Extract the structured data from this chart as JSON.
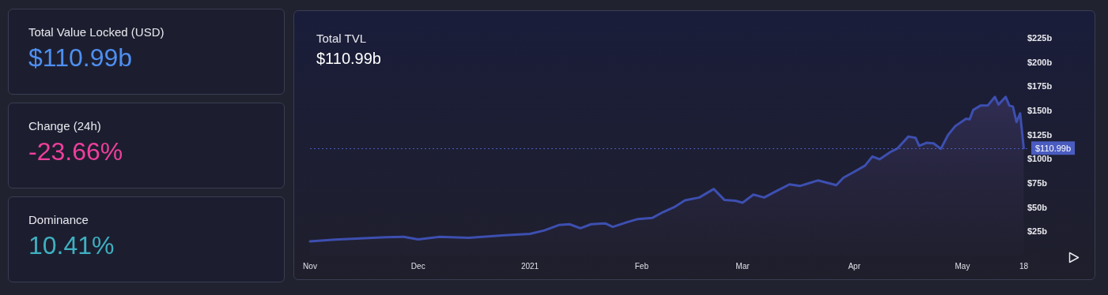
{
  "chart_data": [
    {
      "type": "other",
      "annotations": [
        "Total Value Locked (USD)",
        "$110.99b",
        "Change (24h)",
        "-23.66%",
        "Dominance",
        "10.41%"
      ]
    },
    {
      "type": "area",
      "title": "Total TVL",
      "subtitle": "$110.99b",
      "color": "#3d4fb0",
      "marker": "none",
      "x": [
        "2020-11-01",
        "2020-11-08",
        "2020-11-15",
        "2020-11-22",
        "2020-11-27",
        "2020-12-01",
        "2020-12-07",
        "2020-12-15",
        "2020-12-25",
        "2021-01-01",
        "2021-01-05",
        "2021-01-09",
        "2021-01-12",
        "2021-01-15",
        "2021-01-18",
        "2021-01-22",
        "2021-01-24",
        "2021-01-28",
        "2021-01-31",
        "2021-02-04",
        "2021-02-07",
        "2021-02-10",
        "2021-02-13",
        "2021-02-17",
        "2021-02-21",
        "2021-02-24",
        "2021-02-27",
        "2021-03-01",
        "2021-03-04",
        "2021-03-07",
        "2021-03-10",
        "2021-03-14",
        "2021-03-17",
        "2021-03-22",
        "2021-03-27",
        "2021-03-29",
        "2021-04-01",
        "2021-04-04",
        "2021-04-06",
        "2021-04-08",
        "2021-04-11",
        "2021-04-13",
        "2021-04-16",
        "2021-04-18",
        "2021-04-19",
        "2021-04-21",
        "2021-04-23",
        "2021-04-25",
        "2021-04-27",
        "2021-04-29",
        "2021-05-02",
        "2021-05-03",
        "2021-05-04",
        "2021-05-06",
        "2021-05-08",
        "2021-05-10",
        "2021-05-11",
        "2021-05-13",
        "2021-05-14",
        "2021-05-15",
        "2021-05-16",
        "2021-05-17",
        "2021-05-18"
      ],
      "values": [
        14.6,
        16.5,
        17.8,
        19,
        19.4,
        16.7,
        19.4,
        18.4,
        21,
        22.4,
        26,
        31.5,
        32.4,
        28.3,
        32.4,
        33.2,
        29.7,
        34.5,
        37.8,
        39,
        45,
        50,
        57,
        60,
        68.8,
        57.4,
        56.6,
        54.6,
        63,
        60,
        65.9,
        73.6,
        72,
        77.7,
        72.8,
        80.5,
        86.6,
        93,
        102.4,
        99.5,
        107,
        110.8,
        123,
        121.6,
        113.4,
        116.5,
        116,
        110.3,
        124.6,
        133.8,
        141.4,
        140.8,
        150.5,
        155,
        155,
        164,
        156,
        164,
        155,
        154,
        138,
        147,
        110.99
      ],
      "xlim": [
        "2020-11-01",
        "2021-05-19"
      ],
      "xticks": [
        {
          "value": "2020-11-01",
          "label": "Nov"
        },
        {
          "value": "2020-12-01",
          "label": "Dec"
        },
        {
          "value": "2021-01-01",
          "label": "2021"
        },
        {
          "value": "2021-02-01",
          "label": "Feb"
        },
        {
          "value": "2021-03-01",
          "label": "Mar"
        },
        {
          "value": "2021-04-01",
          "label": "Apr"
        },
        {
          "value": "2021-05-01",
          "label": "May"
        },
        {
          "value": "2021-05-18",
          "label": "18"
        }
      ],
      "ylim": [
        0,
        225
      ],
      "yticks": [
        {
          "value": 25,
          "label": "$25b"
        },
        {
          "value": 50,
          "label": "$50b"
        },
        {
          "value": 75,
          "label": "$75b"
        },
        {
          "value": 100,
          "label": "$100b"
        },
        {
          "value": 125,
          "label": "$125b"
        },
        {
          "value": 150,
          "label": "$150b"
        },
        {
          "value": 175,
          "label": "$175b"
        },
        {
          "value": 200,
          "label": "$200b"
        },
        {
          "value": 225,
          "label": "$225b"
        }
      ],
      "ref_lines": [
        {
          "axis": "y",
          "value": 110.99,
          "label": "$110.99b",
          "color": "#4a5cc0",
          "line_style": "dotted"
        }
      ]
    }
  ]
}
